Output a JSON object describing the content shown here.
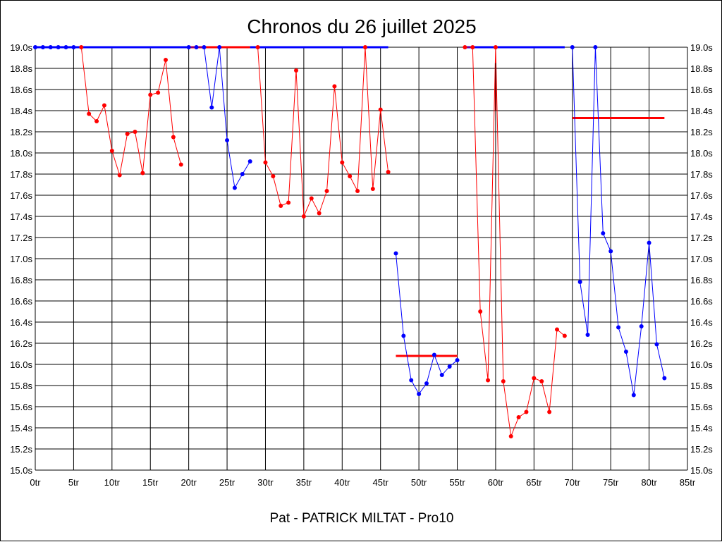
{
  "title": "Chronos du 26 juillet 2025",
  "footer": "Pat - PATRICK MILTAT - Pro10",
  "chart_data": {
    "type": "line",
    "title": "Chronos du 26 juillet 2025",
    "xlabel": "",
    "ylabel": "",
    "xlim": [
      0,
      85
    ],
    "ylim": [
      15.0,
      19.0
    ],
    "grid": true,
    "x_tick_labels": [
      "0tr",
      "5tr",
      "10tr",
      "15tr",
      "20tr",
      "25tr",
      "30tr",
      "35tr",
      "40tr",
      "45tr",
      "50tr",
      "55tr",
      "60tr",
      "65tr",
      "70tr",
      "75tr",
      "80tr",
      "85tr"
    ],
    "y_tick_labels": [
      "15.0s",
      "15.2s",
      "15.4s",
      "15.6s",
      "15.8s",
      "16.0s",
      "16.2s",
      "16.4s",
      "16.6s",
      "16.8s",
      "17.0s",
      "17.2s",
      "17.4s",
      "17.6s",
      "17.8s",
      "18.0s",
      "18.2s",
      "18.4s",
      "18.6s",
      "18.8s",
      "19.0s"
    ],
    "colors": {
      "red": "#ff0000",
      "blue": "#0000ff",
      "dark_red": "#800000"
    },
    "segments": [
      {
        "color": "blue",
        "points": [
          [
            0,
            19.0
          ],
          [
            1,
            19.0
          ],
          [
            2,
            19.0
          ],
          [
            3,
            19.0
          ],
          [
            4,
            19.0
          ],
          [
            5,
            19.0
          ]
        ]
      },
      {
        "color": "red",
        "points": [
          [
            6,
            19.0
          ],
          [
            7,
            18.37
          ],
          [
            8,
            18.3
          ],
          [
            9,
            18.45
          ],
          [
            10,
            18.02
          ],
          [
            11,
            17.79
          ],
          [
            12,
            18.18
          ],
          [
            13,
            18.2
          ],
          [
            14,
            17.81
          ],
          [
            15,
            18.55
          ],
          [
            16,
            18.57
          ],
          [
            17,
            18.88
          ],
          [
            18,
            18.15
          ],
          [
            19,
            17.89
          ]
        ]
      },
      {
        "color": "blue",
        "points": [
          [
            20,
            19.0
          ],
          [
            21,
            19.0
          ],
          [
            22,
            19.0
          ],
          [
            23,
            18.43
          ],
          [
            24,
            19.0
          ],
          [
            25,
            18.12
          ],
          [
            26,
            17.67
          ],
          [
            27,
            17.8
          ],
          [
            28,
            17.92
          ]
        ]
      },
      {
        "color": "red",
        "points": [
          [
            29,
            19.0
          ],
          [
            30,
            17.91
          ],
          [
            31,
            17.78
          ],
          [
            32,
            17.5
          ],
          [
            33,
            17.53
          ],
          [
            34,
            18.78
          ],
          [
            35,
            17.4
          ],
          [
            36,
            17.57
          ],
          [
            37,
            17.43
          ],
          [
            38,
            17.64
          ],
          [
            39,
            18.63
          ],
          [
            40,
            17.91
          ],
          [
            41,
            17.78
          ],
          [
            42,
            17.64
          ],
          [
            43,
            19.0
          ],
          [
            44,
            17.66
          ],
          [
            45,
            18.41
          ],
          [
            46,
            17.82
          ]
        ]
      },
      {
        "color": "blue",
        "points": [
          [
            47,
            17.05
          ],
          [
            48,
            16.27
          ],
          [
            49,
            15.85
          ],
          [
            50,
            15.72
          ],
          [
            51,
            15.82
          ],
          [
            52,
            16.09
          ],
          [
            53,
            15.9
          ],
          [
            54,
            15.98
          ],
          [
            55,
            16.04
          ]
        ]
      },
      {
        "color": "red",
        "points": [
          [
            56,
            19.0
          ],
          [
            57,
            19.0
          ],
          [
            58,
            16.5
          ],
          [
            59,
            15.85
          ],
          [
            60,
            19.0
          ],
          [
            61,
            15.84
          ],
          [
            62,
            15.32
          ],
          [
            63,
            15.5
          ],
          [
            64,
            15.55
          ],
          [
            65,
            15.87
          ],
          [
            66,
            15.84
          ],
          [
            67,
            15.55
          ],
          [
            68,
            16.33
          ],
          [
            69,
            16.27
          ]
        ]
      },
      {
        "color": "blue",
        "points": [
          [
            70,
            19.0
          ],
          [
            71,
            16.78
          ],
          [
            72,
            16.28
          ],
          [
            73,
            19.0
          ],
          [
            74,
            17.24
          ],
          [
            75,
            17.07
          ],
          [
            76,
            16.35
          ],
          [
            77,
            16.12
          ],
          [
            78,
            15.71
          ],
          [
            79,
            16.36
          ],
          [
            80,
            17.15
          ],
          [
            81,
            16.19
          ],
          [
            82,
            15.87
          ]
        ]
      }
    ],
    "vertical_marks": [
      {
        "color": "dark_red",
        "x": 60,
        "y_from": 18.85,
        "y_to": 18.4
      }
    ],
    "reference_lines": [
      {
        "color": "blue",
        "x_from": 0,
        "x_to": 20,
        "y": 19.0
      },
      {
        "color": "red",
        "x_from": 20,
        "x_to": 28,
        "y": 19.0
      },
      {
        "color": "blue",
        "x_from": 28,
        "x_to": 46,
        "y": 19.0
      },
      {
        "color": "red",
        "x_from": 47,
        "x_to": 55,
        "y": 16.08
      },
      {
        "color": "blue",
        "x_from": 56,
        "x_to": 69,
        "y": 19.0
      },
      {
        "color": "red",
        "x_from": 70,
        "x_to": 82,
        "y": 18.33
      }
    ]
  }
}
